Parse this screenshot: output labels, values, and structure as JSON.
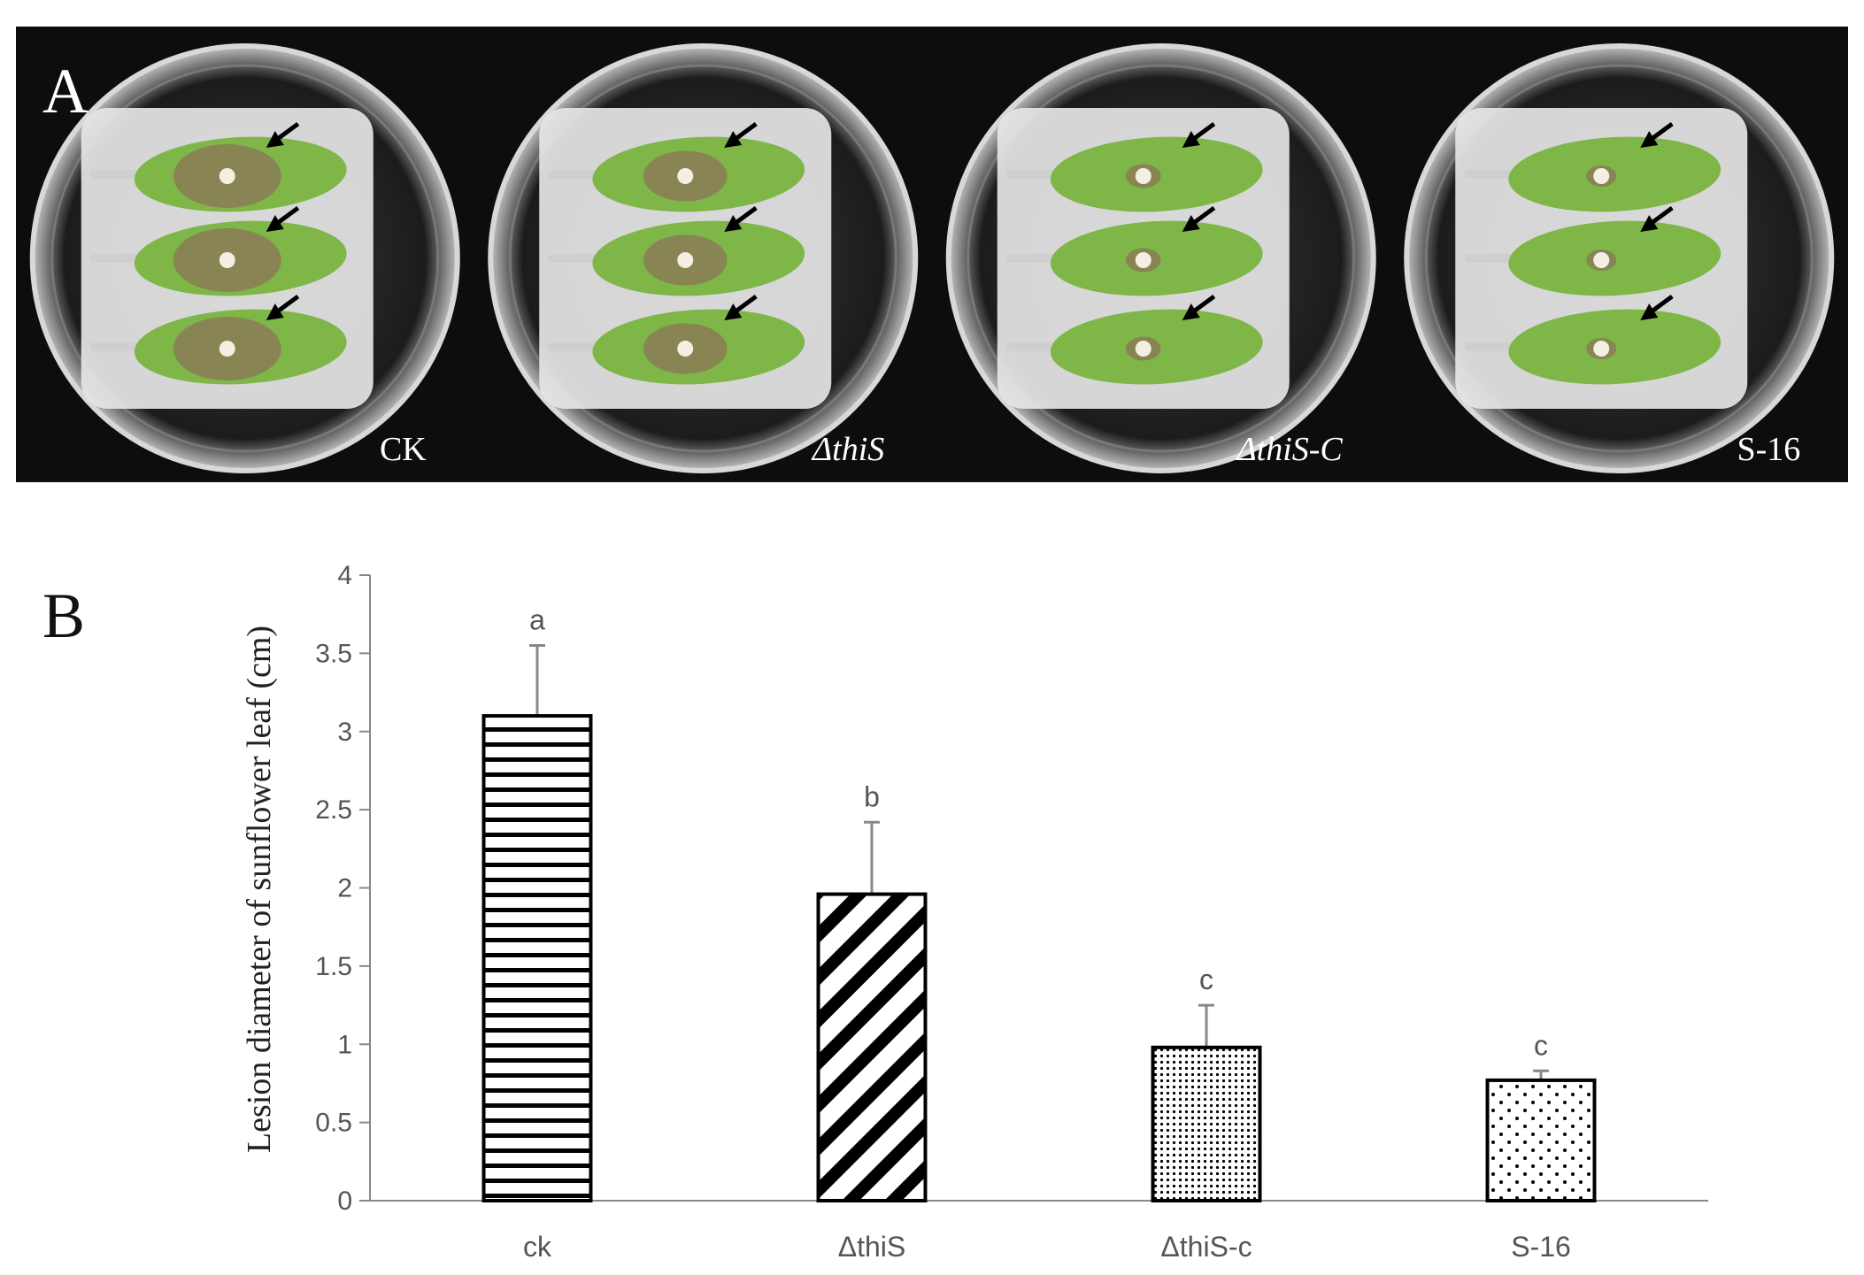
{
  "panel_a": {
    "letter": "A",
    "plates": [
      {
        "label": "CK",
        "italic": false
      },
      {
        "label": "ΔthiS",
        "italic": true
      },
      {
        "label": "ΔthiS-C",
        "italic": true
      },
      {
        "label": "S-16",
        "italic": false
      }
    ],
    "colors": {
      "background": "#0d0d0d",
      "leaf": "#7fb648",
      "lesion": "#8a7b56"
    }
  },
  "panel_b": {
    "letter": "B"
  },
  "chart_data": {
    "type": "bar",
    "title": "",
    "xlabel": "",
    "ylabel": "Lesion diameter of sunflower leaf (cm)",
    "ylim": [
      0,
      4
    ],
    "yticks": [
      "0",
      "0.5",
      "1",
      "1.5",
      "2",
      "2.5",
      "3",
      "3.5",
      "4"
    ],
    "categories": [
      "ck",
      "ΔthiS",
      "ΔthiS-c",
      "S-16"
    ],
    "values": [
      3.1,
      1.96,
      0.98,
      0.77
    ],
    "errors": [
      0.45,
      0.46,
      0.27,
      0.06
    ],
    "significance": [
      "a",
      "b",
      "c",
      "c"
    ],
    "patterns": [
      "horizontal-lines",
      "diagonal-stripes",
      "dense-dots",
      "sparse-dots"
    ],
    "grid": false,
    "legend": "none"
  }
}
